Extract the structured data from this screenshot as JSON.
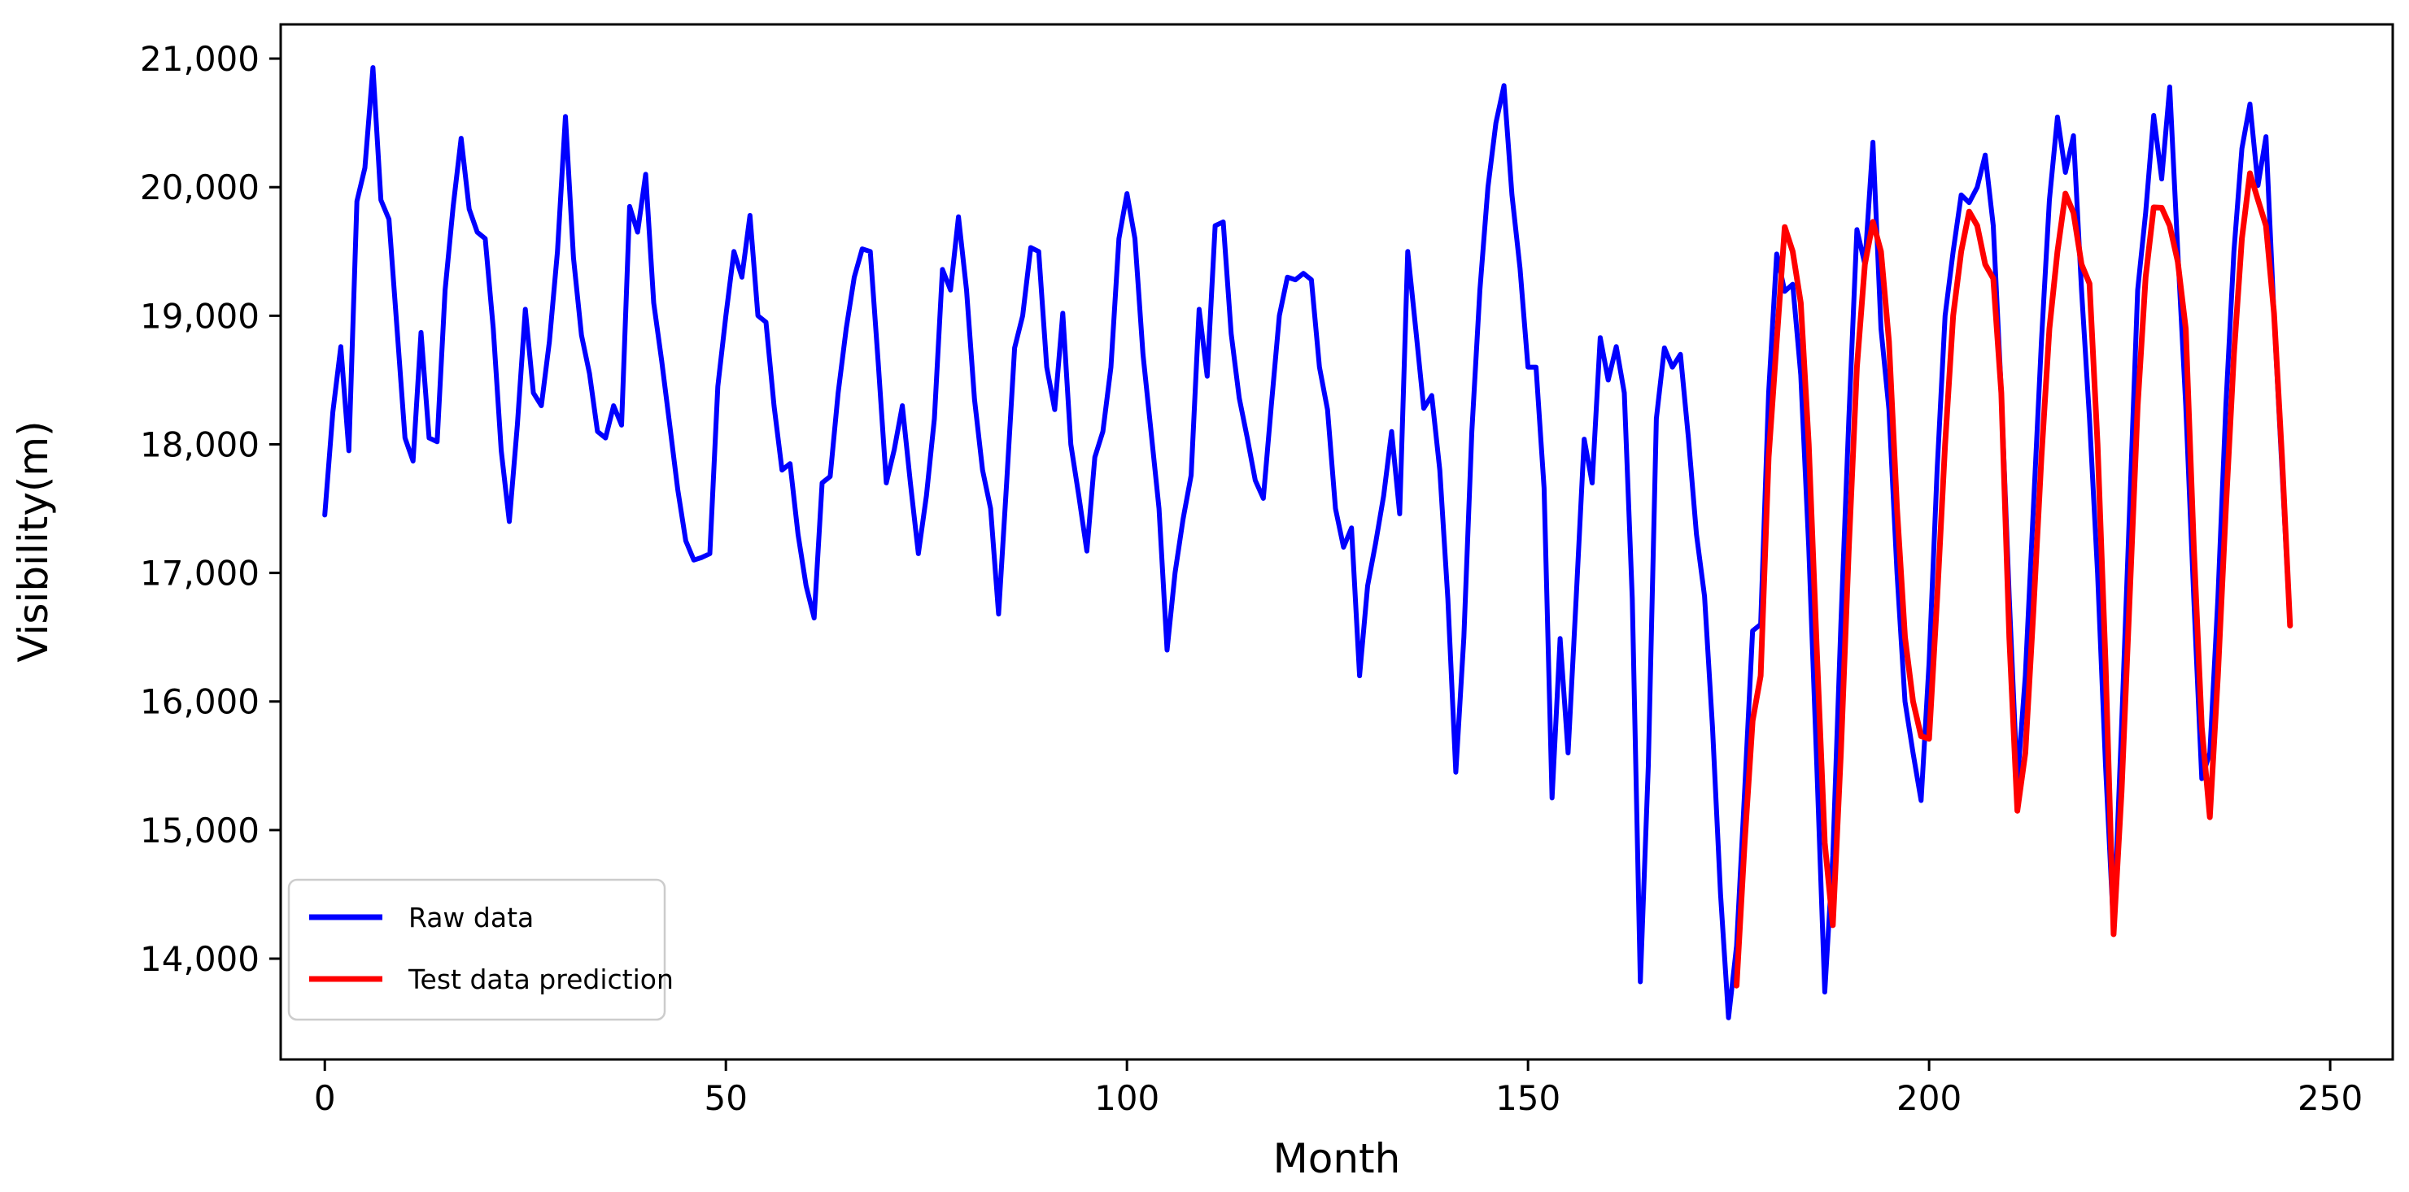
{
  "figure": {
    "background": "#ffffff",
    "axis_color": "#000000"
  },
  "chart_data": {
    "type": "line",
    "title": "",
    "xlabel": "Month",
    "ylabel": "Visibility(m)",
    "grid": false,
    "xlim": [
      -5.5,
      257.8
    ],
    "ylim": [
      13216,
      21266
    ],
    "x_ticks": [
      {
        "value": 0,
        "label": "0"
      },
      {
        "value": 50,
        "label": "50"
      },
      {
        "value": 100,
        "label": "100"
      },
      {
        "value": 150,
        "label": "150"
      },
      {
        "value": 200,
        "label": "200"
      },
      {
        "value": 250,
        "label": "250"
      }
    ],
    "y_ticks": [
      {
        "value": 14000,
        "label": "14,000"
      },
      {
        "value": 15000,
        "label": "15,000"
      },
      {
        "value": 16000,
        "label": "16,000"
      },
      {
        "value": 17000,
        "label": "17,000"
      },
      {
        "value": 18000,
        "label": "18,000"
      },
      {
        "value": 19000,
        "label": "19,000"
      },
      {
        "value": 20000,
        "label": "20,000"
      },
      {
        "value": 21000,
        "label": "21,000"
      }
    ],
    "legend": {
      "position": "lower-left",
      "entries": [
        {
          "label": "Raw data",
          "color": "#0000ff"
        },
        {
          "label": "Test data prediction",
          "color": "#ff0000"
        }
      ]
    },
    "series": [
      {
        "name": "Raw data",
        "color": "#0000ff",
        "line_width": 6,
        "start_month": 0,
        "values": [
          17450,
          18250,
          18760,
          17950,
          19890,
          20150,
          20930,
          19900,
          19750,
          18900,
          18050,
          17870,
          18870,
          18050,
          18020,
          19200,
          19850,
          20380,
          19830,
          19650,
          19600,
          18900,
          17950,
          17400,
          18150,
          19050,
          18400,
          18300,
          18800,
          19500,
          20550,
          19450,
          18850,
          18550,
          18100,
          18050,
          18300,
          18150,
          19850,
          19650,
          20100,
          19100,
          18650,
          18150,
          17650,
          17250,
          17100,
          17120,
          17150,
          18450,
          19000,
          19500,
          19300,
          19780,
          19000,
          18950,
          18300,
          17800,
          17850,
          17300,
          16900,
          16650,
          17700,
          17750,
          18400,
          18900,
          19300,
          19520,
          19500,
          18630,
          17700,
          17960,
          18300,
          17700,
          17150,
          17600,
          18200,
          19360,
          19200,
          19770,
          19200,
          18350,
          17800,
          17500,
          16680,
          17700,
          18750,
          19000,
          19530,
          19500,
          18600,
          18270,
          19020,
          18000,
          17600,
          17170,
          17900,
          18100,
          18600,
          19600,
          19950,
          19600,
          18700,
          18100,
          17500,
          16400,
          17000,
          17420,
          17760,
          19050,
          18530,
          19700,
          19730,
          18860,
          18360,
          18050,
          17720,
          17580,
          18300,
          19000,
          19300,
          19280,
          19330,
          19280,
          18600,
          18270,
          17500,
          17200,
          17350,
          16200,
          16900,
          17230,
          17600,
          18100,
          17460,
          19500,
          18900,
          18280,
          18380,
          17800,
          16800,
          15450,
          16500,
          18100,
          19200,
          20000,
          20500,
          20790,
          19940,
          19370,
          18600,
          18600,
          17660,
          15250,
          16490,
          15600,
          16800,
          18040,
          17700,
          18830,
          18500,
          18760,
          18400,
          16800,
          13820,
          15500,
          18200,
          18750,
          18600,
          18700,
          18050,
          17300,
          16820,
          15800,
          14500,
          13540,
          14100,
          15300,
          16550,
          16600,
          18400,
          19480,
          19190,
          19245,
          18540,
          17200,
          15500,
          13740,
          14800,
          16600,
          18200,
          19670,
          19400,
          20350,
          18900,
          18270,
          17000,
          16000,
          15600,
          15230,
          16300,
          17800,
          19000,
          19500,
          19940,
          19880,
          20000,
          20250,
          19700,
          18400,
          16800,
          15370,
          16200,
          17500,
          18800,
          19900,
          20545,
          20115,
          20400,
          19200,
          18200,
          17000,
          15500,
          14230,
          15800,
          17500,
          19200,
          19800,
          20558,
          20064,
          20779,
          19500,
          18300,
          16800,
          15400,
          15600,
          16800,
          18300,
          19500,
          20300,
          20646,
          20014,
          20393,
          19000,
          17800,
          16590
        ]
      },
      {
        "name": "Test data prediction",
        "color": "#ff0000",
        "line_width": 7,
        "start_month": 176,
        "values": [
          13790,
          14900,
          15850,
          16200,
          17900,
          18800,
          19690,
          19500,
          19100,
          18000,
          16400,
          14900,
          14260,
          15600,
          17200,
          18600,
          19400,
          19730,
          19500,
          18800,
          17500,
          16500,
          16000,
          15730,
          15710,
          16800,
          18000,
          19000,
          19500,
          19810,
          19700,
          19400,
          19290,
          18400,
          16500,
          15150,
          15600,
          16700,
          17900,
          18900,
          19500,
          19950,
          19800,
          19400,
          19250,
          18000,
          16300,
          14190,
          15300,
          16800,
          18300,
          19300,
          19843,
          19840,
          19700,
          19420,
          18900,
          17200,
          15800,
          15100,
          16200,
          17500,
          18700,
          19600,
          20108,
          19900,
          19700,
          19020,
          17900,
          16590
        ]
      }
    ]
  }
}
